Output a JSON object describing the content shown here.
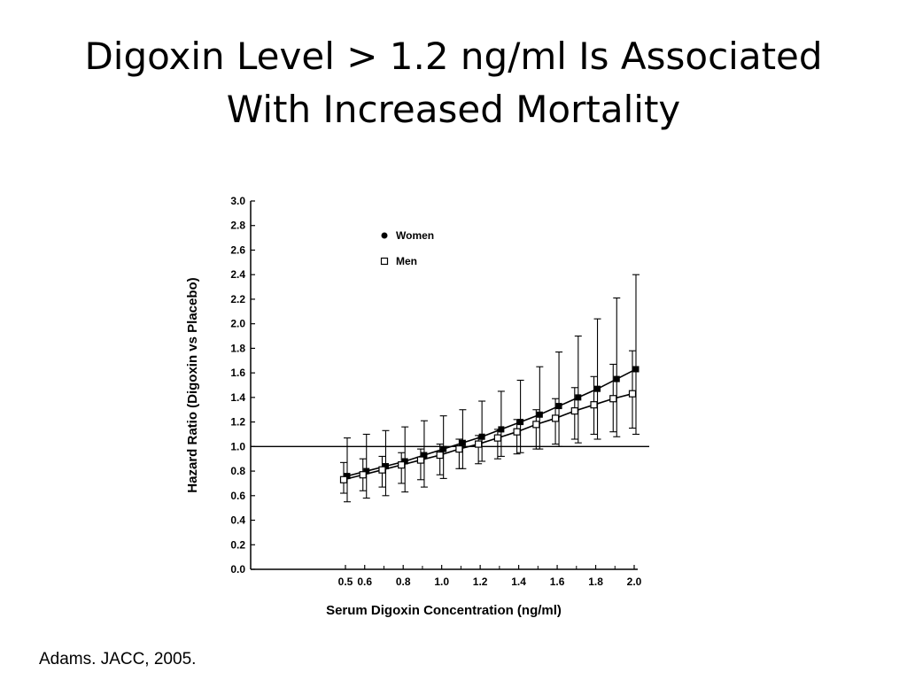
{
  "slide": {
    "title_line1": "Digoxin Level > 1.2 ng/ml Is Associated",
    "title_line2": "With Increased Mortality",
    "citation": "Adams. JACC, 2005."
  },
  "chart_data": {
    "type": "line",
    "title": "",
    "xlabel": "Serum Digoxin Concentration (ng/ml)",
    "ylabel": "Hazard Ratio (Digoxin vs Placebo)",
    "xlim": [
      0.5,
      2.0
    ],
    "ylim": [
      0.0,
      3.0
    ],
    "x_ticks": [
      "0.5",
      "0.6",
      "0.8",
      "1.0",
      "1.2",
      "1.4",
      "1.6",
      "1.8",
      "2.0"
    ],
    "y_ticks": [
      "0.0",
      "0.2",
      "0.4",
      "0.6",
      "0.8",
      "1.0",
      "1.2",
      "1.4",
      "1.6",
      "1.8",
      "2.0",
      "2.2",
      "2.4",
      "2.6",
      "2.8",
      "3.0"
    ],
    "reference_line": 1.0,
    "grid": false,
    "legend_position": "top-left",
    "x": [
      0.5,
      0.6,
      0.7,
      0.8,
      0.9,
      1.0,
      1.1,
      1.2,
      1.3,
      1.4,
      1.5,
      1.6,
      1.7,
      1.8,
      1.9,
      2.0
    ],
    "series": [
      {
        "name": "Women",
        "marker": "filled-square",
        "color": "#000000",
        "values": [
          0.76,
          0.8,
          0.84,
          0.88,
          0.93,
          0.98,
          1.03,
          1.08,
          1.14,
          1.2,
          1.26,
          1.33,
          1.4,
          1.47,
          1.55,
          1.63
        ],
        "upper": [
          1.07,
          1.1,
          1.13,
          1.16,
          1.21,
          1.25,
          1.3,
          1.37,
          1.45,
          1.54,
          1.65,
          1.77,
          1.9,
          2.04,
          2.21,
          2.4
        ],
        "lower": [
          0.55,
          0.58,
          0.6,
          0.63,
          0.67,
          0.74,
          0.82,
          0.88,
          0.92,
          0.95,
          0.98,
          1.0,
          1.03,
          1.06,
          1.08,
          1.1
        ]
      },
      {
        "name": "Men",
        "marker": "open-square",
        "color": "#000000",
        "values": [
          0.73,
          0.77,
          0.81,
          0.85,
          0.89,
          0.93,
          0.98,
          1.02,
          1.07,
          1.12,
          1.18,
          1.23,
          1.29,
          1.34,
          1.39,
          1.43
        ],
        "upper": [
          0.87,
          0.9,
          0.92,
          0.95,
          0.98,
          1.02,
          1.06,
          1.09,
          1.14,
          1.22,
          1.3,
          1.39,
          1.48,
          1.57,
          1.67,
          1.78
        ],
        "lower": [
          0.62,
          0.64,
          0.67,
          0.7,
          0.73,
          0.77,
          0.82,
          0.86,
          0.9,
          0.94,
          0.98,
          1.02,
          1.06,
          1.1,
          1.12,
          1.15
        ]
      }
    ]
  }
}
